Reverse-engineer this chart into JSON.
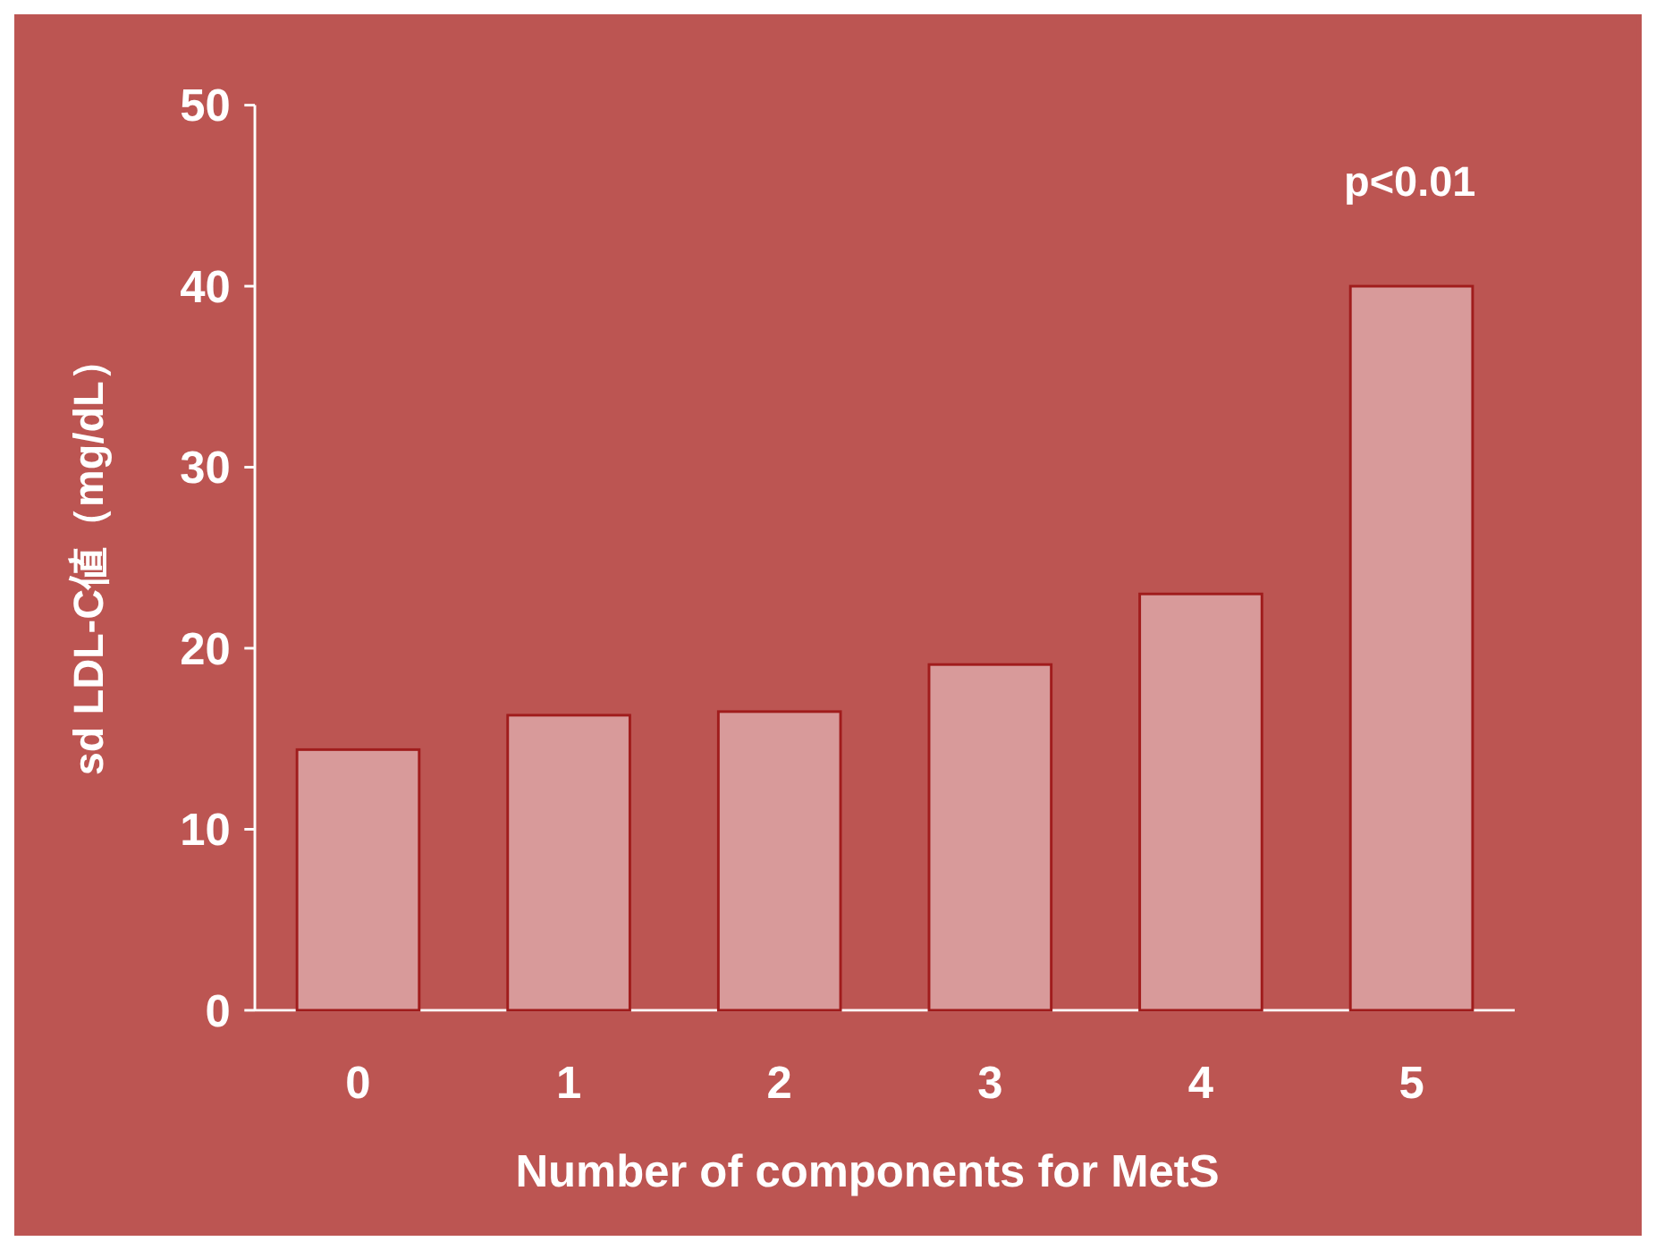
{
  "chart_data": {
    "type": "bar",
    "xlabel": "Number of components for MetS",
    "ylabel": "sd LDL-C値（mg/dL）",
    "categories": [
      "0",
      "1",
      "2",
      "3",
      "4",
      "5"
    ],
    "values": [
      14.4,
      16.3,
      16.5,
      19.1,
      23.0,
      40.0
    ],
    "color": "#d89a9a",
    "ylim": [
      0,
      50
    ],
    "yticks": [
      0,
      10,
      20,
      30,
      40,
      50
    ],
    "annotations": [
      "p<0.01"
    ],
    "grid": false
  }
}
